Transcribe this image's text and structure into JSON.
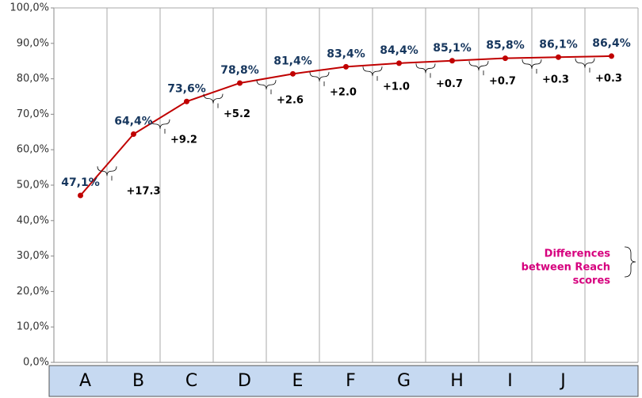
{
  "chart_data": {
    "type": "line",
    "categories": [
      "A",
      "B",
      "C",
      "D",
      "E",
      "F",
      "G",
      "H",
      "I",
      "J",
      null
    ],
    "series": [
      {
        "name": "Reach",
        "color": "#c00000",
        "values": [
          47.1,
          64.4,
          73.6,
          78.8,
          81.4,
          83.4,
          84.4,
          85.1,
          85.8,
          86.1,
          86.4
        ],
        "value_labels": [
          "47,1%",
          "64,4%",
          "73,6%",
          "78,8%",
          "81,4%",
          "83,4%",
          "84,4%",
          "85,1%",
          "85,8%",
          "86,1%",
          "86,4%"
        ]
      }
    ],
    "differences": [
      "+17.3",
      "+9.2",
      "+5.2",
      "+2.6",
      "+2.0",
      "+1.0",
      "+0.7",
      "+0.7",
      "+0.3",
      "+0.3"
    ],
    "note": [
      "Differences",
      "between Reach",
      "scores"
    ],
    "ylim": [
      0,
      100
    ],
    "yticks": [
      {
        "value": 0,
        "label": "0,0%"
      },
      {
        "value": 10,
        "label": "10,0%"
      },
      {
        "value": 20,
        "label": "20,0%"
      },
      {
        "value": 30,
        "label": "30,0%"
      },
      {
        "value": 40,
        "label": "40,0%"
      },
      {
        "value": 50,
        "label": "50,0%"
      },
      {
        "value": 60,
        "label": "60,0%"
      },
      {
        "value": 70,
        "label": "70,0%"
      },
      {
        "value": 80,
        "label": "80,0%"
      },
      {
        "value": 90,
        "label": "90,0%"
      },
      {
        "value": 100,
        "label": "100,0%"
      }
    ],
    "grid": true
  }
}
